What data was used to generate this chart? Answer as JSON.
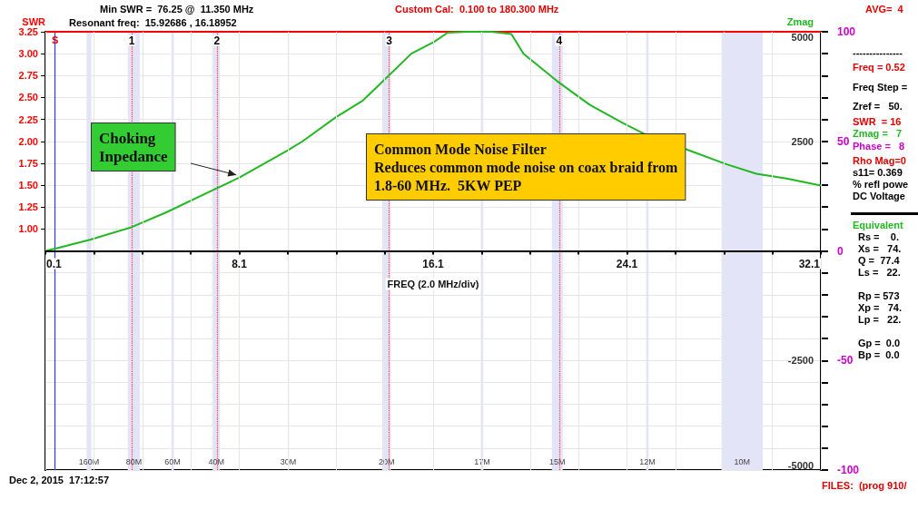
{
  "chart_data": {
    "type": "line",
    "xlabel": "FREQ (2.0 MHz/div)",
    "ylabel": "SWR",
    "y2label": "Zmag",
    "xlim": [
      0.1,
      32.1
    ],
    "xticks": [
      0.1,
      {
        "value": 2.1,
        "label": null
      },
      {
        "value": 4.1,
        "label": null
      },
      {
        "value": 6.1,
        "label": null
      },
      8.1,
      {
        "value": 10.1,
        "label": null
      },
      {
        "value": 12.1,
        "label": null
      },
      {
        "value": 14.1,
        "label": null
      },
      16.1,
      {
        "value": 18.1,
        "label": null
      },
      {
        "value": 20.1,
        "label": null
      },
      {
        "value": 22.1,
        "label": null
      },
      24.1,
      {
        "value": 26.1,
        "label": null
      },
      {
        "value": 28.1,
        "label": null
      },
      {
        "value": 30.1,
        "label": null
      },
      32.1
    ],
    "ylim": [
      -1.75,
      3.25
    ],
    "yticks": [
      {
        "value": 1,
        "label": "1.00"
      },
      {
        "value": 1.25,
        "label": "1.25"
      },
      {
        "value": 1.5,
        "label": "1.50"
      },
      {
        "value": 1.75,
        "label": "1.75"
      },
      {
        "value": 2,
        "label": "2.00"
      },
      {
        "value": 2.25,
        "label": "2.25"
      },
      {
        "value": 2.5,
        "label": "2.50"
      },
      {
        "value": 2.75,
        "label": "2.75"
      },
      {
        "value": 3,
        "label": "3.00"
      },
      {
        "value": 3.25,
        "label": "3.25"
      }
    ],
    "y2lim": [
      -5000,
      5000
    ],
    "y2ticks": [
      -5000,
      {
        "value": -4500,
        "label": null
      },
      {
        "value": -4000,
        "label": null
      },
      {
        "value": -3500,
        "label": null
      },
      {
        "value": -3000,
        "label": null
      },
      -2500,
      {
        "value": -2000,
        "label": null
      },
      {
        "value": -1500,
        "label": null
      },
      {
        "value": -1000,
        "label": null
      },
      {
        "value": -500,
        "label": null
      },
      {
        "value": 0,
        "label": null
      },
      {
        "value": 500,
        "label": null
      },
      {
        "value": 1000,
        "label": null
      },
      {
        "value": 1500,
        "label": null
      },
      {
        "value": 2000,
        "label": null
      },
      2500,
      {
        "value": 3000,
        "label": null
      },
      {
        "value": 3500,
        "label": null
      },
      {
        "value": 4000,
        "label": null
      },
      {
        "value": 4500,
        "label": null
      },
      5000
    ],
    "y3lim": [
      -100,
      100
    ],
    "y3ticks": [
      -100,
      -50,
      0,
      50,
      100
    ],
    "grid": true,
    "x": [
      0.1,
      0.51,
      1.97,
      3.65,
      5.09,
      7.18,
      8.09,
      10.09,
      10.71,
      12.09,
      13.2,
      14.29,
      15.2,
      16.14,
      16.7,
      17.5,
      18.5,
      19.33,
      19.83,
      21.2,
      22.57,
      23.95,
      24.82,
      28.19,
      29.44,
      30.69,
      32.1
    ],
    "series": [
      {
        "axis": "y2",
        "color": "#22b822",
        "values": [
          0,
          50,
          260,
          540,
          880,
          1430,
          1670,
          2290,
          2500,
          3050,
          3430,
          4010,
          4500,
          4770,
          4980,
          5000,
          5000,
          4950,
          4500,
          3880,
          3330,
          2910,
          2670,
          1980,
          1760,
          1650,
          1490
        ]
      }
    ],
    "ref_lines": [
      {
        "axis": "x",
        "value": 0.5,
        "label": "S",
        "color": "#3333ff",
        "line_style": "solid"
      },
      {
        "axis": "y",
        "value": 3.25,
        "label": null,
        "color": "#ff0000",
        "line_style": "solid"
      },
      {
        "axis": "x",
        "value": 3.66,
        "label": null,
        "color": "#ff3333",
        "line_style": "dotted"
      },
      {
        "axis": "x",
        "value": 7.18,
        "label": null,
        "color": "#ff3333",
        "line_style": "dotted"
      },
      {
        "axis": "x",
        "value": 14.29,
        "label": null,
        "color": "#ff3333",
        "line_style": "dotted"
      },
      {
        "axis": "x",
        "value": 21.3,
        "label": null,
        "color": "#ff3333",
        "line_style": "dotted"
      }
    ],
    "bands": [
      {
        "axis": "x",
        "from": 1.8,
        "to": 2.0,
        "label": "160M",
        "color": "#e4e4f8"
      },
      {
        "axis": "x",
        "from": 3.5,
        "to": 4.0,
        "label": "80M",
        "color": "#e4e4f8"
      },
      {
        "axis": "x",
        "from": 5.3,
        "to": 5.4,
        "label": "60M",
        "color": "#e4e4f8"
      },
      {
        "axis": "x",
        "from": 7.0,
        "to": 7.3,
        "label": "40M",
        "color": "#e4e4f8"
      },
      {
        "axis": "x",
        "from": 10.1,
        "to": 10.15,
        "label": "30M",
        "color": "#e4e4f8"
      },
      {
        "axis": "x",
        "from": 14.0,
        "to": 14.35,
        "label": "20M",
        "color": "#e4e4f8"
      },
      {
        "axis": "x",
        "from": 18.07,
        "to": 18.17,
        "label": "17M",
        "color": "#e4e4f8"
      },
      {
        "axis": "x",
        "from": 21.0,
        "to": 21.45,
        "label": "15M",
        "color": "#e4e4f8"
      },
      {
        "axis": "x",
        "from": 24.89,
        "to": 24.99,
        "label": "12M",
        "color": "#e4e4f8"
      },
      {
        "axis": "x",
        "from": 28.0,
        "to": 29.7,
        "label": "10M",
        "color": "#e4e4f8"
      }
    ],
    "annotations": [
      "Min SWR =  76.25 @  11.350 MHz",
      "Resonant freq:  15.92686 , 16.18952",
      "Custom Cal:  0.100 to 180.300 MHz",
      "AVG=  4",
      "Dec 2, 2015  17:12:57",
      "FILES:  (prog 910/",
      "---------------",
      "Freq = 0.52",
      "Freq Step =",
      "Zref =   50.",
      "SWR  = 16",
      "Zmag =   7",
      "Phase =   8",
      "Rho Mag=0",
      "s11= 0.369",
      "% refl powe",
      "DC Voltage",
      "Equivalent",
      "Rs =    0.",
      "Xs =   74.",
      "Q =  77.4",
      "Ls =   22.",
      "Rp = 573",
      "Xp =   74.",
      "Lp =   22.",
      "Gp =  0.0",
      "Bp =  0.0",
      {
        "text": "1",
        "x": 3.66,
        "y": 3.15
      },
      {
        "text": "2",
        "x": 7.18,
        "y": 3.15
      },
      {
        "text": "3",
        "x": 14.29,
        "y": 3.15
      },
      {
        "text": "4",
        "x": 21.3,
        "y": 3.15
      },
      "Choking\nInpedance",
      "Common Mode Noise Filter\nReduces common mode noise on coax braid from\n1.8-60 MHz.  5KW PEP"
    ]
  }
}
